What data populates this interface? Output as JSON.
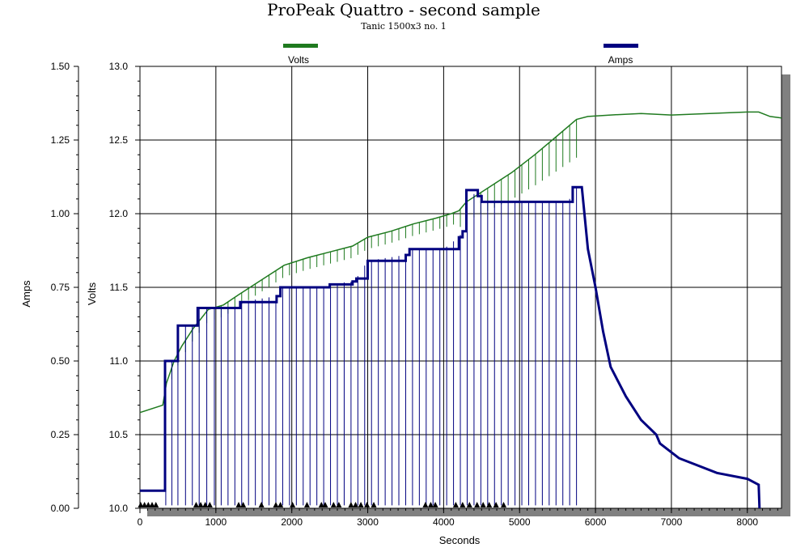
{
  "chart_data": {
    "type": "line",
    "title": "ProPeak Quattro  - second sample",
    "subtitle": "Tanic 1500x3 no. 1",
    "xlabel": "Seconds",
    "ylabel_left_outer": "Amps",
    "ylabel_left_inner": "Volts",
    "xlim": [
      0,
      8450
    ],
    "volts_ylim": [
      10.0,
      13.0
    ],
    "amps_ylim": [
      0.0,
      1.5
    ],
    "x_ticks": [
      "0",
      "1000",
      "2000",
      "3000",
      "4000",
      "5000",
      "6000",
      "7000",
      "8000"
    ],
    "x_tick_values": [
      0,
      1000,
      2000,
      3000,
      4000,
      5000,
      6000,
      7000,
      8000
    ],
    "volts_ticks": [
      "10.0",
      "10.5",
      "11.0",
      "11.5",
      "12.0",
      "12.5",
      "13.0"
    ],
    "volts_tick_values": [
      10.0,
      10.5,
      11.0,
      11.5,
      12.0,
      12.5,
      13.0
    ],
    "amps_ticks": [
      "0.00",
      "0.25",
      "0.50",
      "0.75",
      "1.00",
      "1.25",
      "1.50"
    ],
    "amps_tick_values": [
      0.0,
      0.25,
      0.5,
      0.75,
      1.0,
      1.25,
      1.5
    ],
    "grid": true,
    "legend_position": "top",
    "series": [
      {
        "name": "Volts",
        "axis": "volts",
        "color": "#1f7a1f",
        "x": [
          0,
          300,
          350,
          450,
          550,
          700,
          900,
          1100,
          1300,
          1600,
          1900,
          2200,
          2500,
          2800,
          3000,
          3300,
          3600,
          3900,
          4100,
          4200,
          4300,
          4600,
          4900,
          5200,
          5500,
          5750,
          5900,
          6200,
          6600,
          7000,
          7500,
          8000,
          8150,
          8300,
          8450
        ],
        "y": [
          10.65,
          10.7,
          10.85,
          11.0,
          11.1,
          11.22,
          11.35,
          11.38,
          11.45,
          11.55,
          11.65,
          11.7,
          11.74,
          11.78,
          11.84,
          11.88,
          11.93,
          11.97,
          12.0,
          12.02,
          12.08,
          12.18,
          12.28,
          12.4,
          12.53,
          12.64,
          12.66,
          12.67,
          12.68,
          12.67,
          12.68,
          12.69,
          12.69,
          12.66,
          12.65
        ]
      },
      {
        "name": "Amps",
        "axis": "amps",
        "color": "#000080",
        "x": [
          0,
          320,
          330,
          470,
          500,
          740,
          760,
          1000,
          1300,
          1320,
          1800,
          1850,
          2450,
          2500,
          2800,
          2850,
          3000,
          3500,
          3550,
          4000,
          4200,
          4250,
          4300,
          4450,
          4500,
          5650,
          5700,
          5820,
          5900,
          6000,
          6100,
          6200,
          6400,
          6600,
          6800,
          6850,
          7000,
          7100,
          7300,
          7600,
          8000,
          8150,
          8160
        ],
        "y": [
          0.06,
          0.06,
          0.5,
          0.5,
          0.62,
          0.62,
          0.68,
          0.68,
          0.68,
          0.7,
          0.72,
          0.75,
          0.75,
          0.76,
          0.77,
          0.78,
          0.84,
          0.86,
          0.88,
          0.88,
          0.92,
          0.94,
          1.08,
          1.06,
          1.04,
          1.04,
          1.09,
          1.09,
          0.88,
          0.75,
          0.6,
          0.48,
          0.38,
          0.3,
          0.25,
          0.22,
          0.19,
          0.17,
          0.15,
          0.12,
          0.1,
          0.08,
          0.0
        ]
      }
    ],
    "pulse_dropouts_seconds": [
      340,
      420,
      500,
      600,
      690,
      780,
      880,
      980,
      1070,
      1160,
      1250,
      1340,
      1430,
      1520,
      1610,
      1700,
      1790,
      1880,
      1970,
      2060,
      2150,
      2240,
      2330,
      2420,
      2510,
      2600,
      2690,
      2780,
      2870,
      2960,
      3050,
      3140,
      3230,
      3320,
      3410,
      3500,
      3590,
      3680,
      3770,
      3860,
      3950,
      4040,
      4130,
      4220,
      4310,
      4400,
      4490,
      4580,
      4670,
      4760,
      4850,
      4940,
      5030,
      5120,
      5210,
      5300,
      5390,
      5480,
      5570,
      5660,
      5750
    ],
    "markers_seconds": [
      10,
      60,
      110,
      160,
      210,
      740,
      800,
      860,
      920,
      1300,
      1360,
      1600,
      1790,
      1850,
      2010,
      2200,
      2390,
      2440,
      2550,
      2620,
      2780,
      2840,
      2910,
      2990,
      3080,
      3760,
      3830,
      3890,
      4160,
      4250,
      4340,
      4440,
      4520,
      4600,
      4690,
      4790
    ]
  }
}
